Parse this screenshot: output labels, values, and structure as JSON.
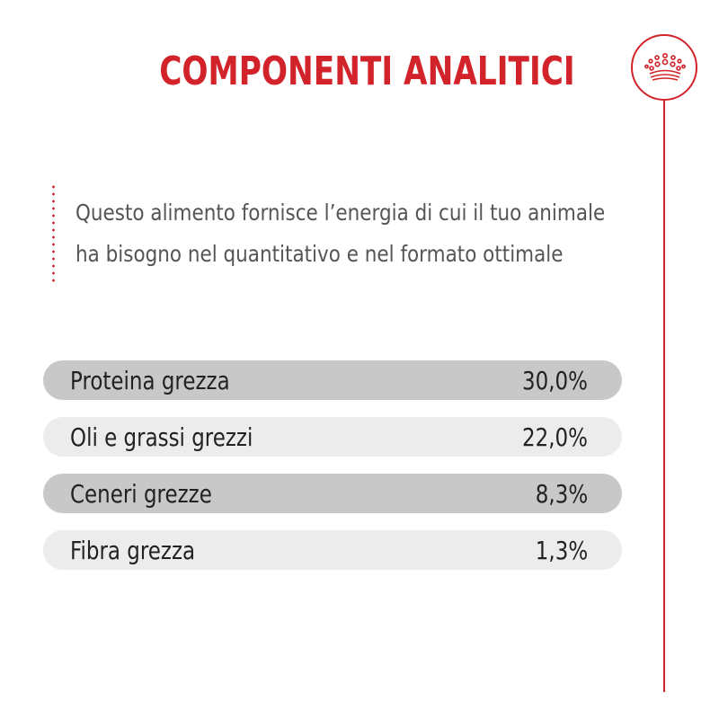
{
  "header": {
    "title": "COMPONENTI ANALITICI",
    "badge_icon": "crown-icon"
  },
  "intro": {
    "line1": "Questo alimento fornisce l’energia di cui il tuo animale",
    "line2": "ha bisogno nel quantitativo e nel formato ottimale"
  },
  "analytics": {
    "rows": [
      {
        "label": "Proteina grezza",
        "value": "30,0%"
      },
      {
        "label": "Oli e grassi grezzi",
        "value": "22,0%"
      },
      {
        "label": "Ceneri grezze",
        "value": "8,3%"
      },
      {
        "label": "Fibra grezza",
        "value": "1,3%"
      }
    ]
  },
  "colors": {
    "accent": "#d2232a",
    "row_dark": "#c8c8c8",
    "row_light": "#ececec",
    "text": "#555555"
  }
}
